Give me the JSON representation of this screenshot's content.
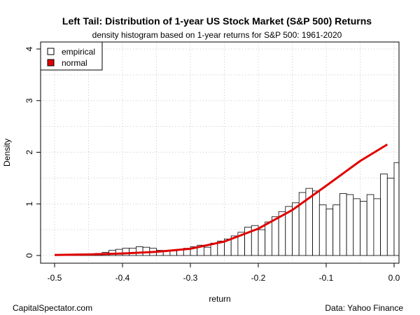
{
  "header": {
    "title": "Left Tail: Distribution of 1-year US Stock Market (S&P 500) Returns",
    "subtitle": "density histogram based on 1-year returns for S&P 500: 1961-2020"
  },
  "footer": {
    "left": "CapitalSpectator.com",
    "right": "Data: Yahoo Finance"
  },
  "colors": {
    "normal_line": "#e00000",
    "bar_fill": "#ffffff",
    "bar_stroke": "#000000",
    "grid": "#c8c8c8"
  },
  "chart_data": {
    "type": "bar",
    "title": "Left Tail: Distribution of 1-year US Stock Market (S&P 500) Returns",
    "subtitle": "density histogram based on 1-year returns for S&P 500: 1961-2020",
    "xlabel": "return",
    "ylabel": "Density",
    "xlim": [
      -0.5,
      0.0
    ],
    "ylim": [
      0,
      4
    ],
    "x_ticks": [
      -0.5,
      -0.4,
      -0.3,
      -0.2,
      -0.1,
      0.0
    ],
    "x_tick_labels": [
      "-0.5",
      "-0.4",
      "-0.3",
      "-0.2",
      "-0.1",
      "0.0"
    ],
    "y_ticks": [
      0,
      1,
      2,
      3,
      4
    ],
    "y_tick_labels": [
      "0",
      "1",
      "2",
      "3",
      "4"
    ],
    "grid": true,
    "legend_position": "top-left",
    "legend": [
      {
        "label": "empirical",
        "kind": "box"
      },
      {
        "label": "normal",
        "kind": "filled"
      }
    ],
    "bin_width": 0.01,
    "bins_start": [
      -0.48,
      -0.47,
      -0.46,
      -0.45,
      -0.44,
      -0.43,
      -0.42,
      -0.41,
      -0.4,
      -0.39,
      -0.38,
      -0.37,
      -0.36,
      -0.35,
      -0.34,
      -0.33,
      -0.32,
      -0.31,
      -0.3,
      -0.29,
      -0.28,
      -0.27,
      -0.26,
      -0.25,
      -0.24,
      -0.23,
      -0.22,
      -0.21,
      -0.2,
      -0.19,
      -0.18,
      -0.17,
      -0.16,
      -0.15,
      -0.14,
      -0.13,
      -0.12,
      -0.11,
      -0.1,
      -0.09,
      -0.08,
      -0.07,
      -0.06,
      -0.05,
      -0.04,
      -0.03,
      -0.02,
      -0.01,
      0.0
    ],
    "empirical_density": [
      0.01,
      0.03,
      0.01,
      0.02,
      0.04,
      0.06,
      0.1,
      0.12,
      0.14,
      0.14,
      0.17,
      0.16,
      0.14,
      0.1,
      0.08,
      0.09,
      0.12,
      0.14,
      0.17,
      0.2,
      0.16,
      0.24,
      0.28,
      0.32,
      0.38,
      0.45,
      0.55,
      0.58,
      0.5,
      0.65,
      0.75,
      0.85,
      0.95,
      1.02,
      1.22,
      1.3,
      1.25,
      0.98,
      0.9,
      0.98,
      1.2,
      1.18,
      1.1,
      1.05,
      1.18,
      1.1,
      1.58,
      1.5,
      1.8
    ],
    "normal_curve": {
      "label": "normal",
      "x": [
        -0.5,
        -0.45,
        -0.4,
        -0.35,
        -0.3,
        -0.25,
        -0.2,
        -0.15,
        -0.1,
        -0.05,
        -0.01
      ],
      "y": [
        0.01,
        0.02,
        0.04,
        0.07,
        0.13,
        0.27,
        0.52,
        0.88,
        1.35,
        1.83,
        2.15
      ]
    }
  }
}
